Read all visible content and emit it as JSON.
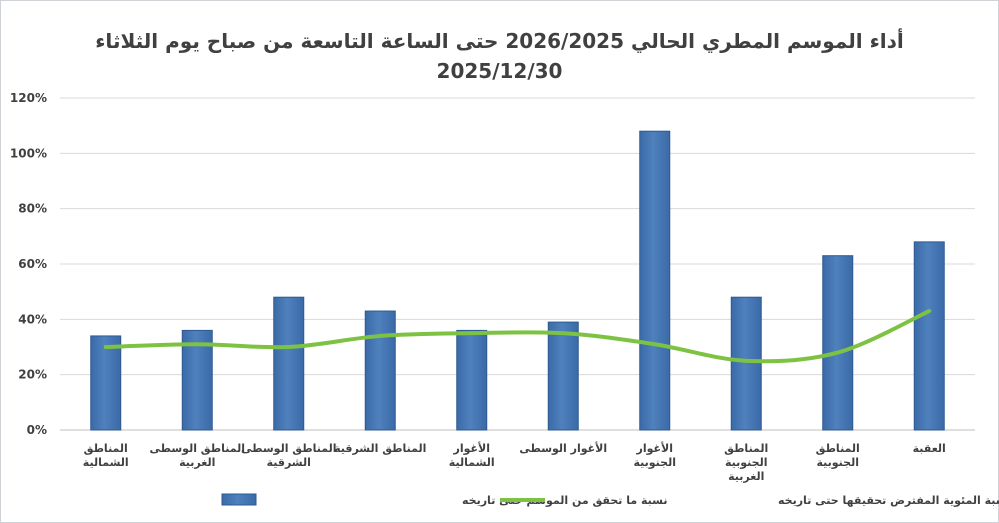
{
  "chart_data": {
    "type": "bar",
    "title_line1": "أداء الموسم المطري الحالي 2026/2025 حتى الساعة التاسعة من صباح يوم الثلاثاء",
    "title_line2": "2025/12/30",
    "categories": [
      "المناطق الشمالية",
      "المناطق الوسطى الغربية",
      "المناطق الوسطى الشرقية",
      "المناطق الشرقية",
      "الأغوار الشمالية",
      "الأغوار الوسطى",
      "الأغوار الجنوبية",
      "المناطق الجنوبية الغربية",
      "المناطق الجنوبية",
      "العقبة"
    ],
    "ylim": [
      0,
      120
    ],
    "yticks": [
      0,
      20,
      40,
      60,
      80,
      100,
      120
    ],
    "ytick_suffix": "%",
    "series": [
      {
        "name": "نسبة ما تحقق من الموسم حتى تاريخه",
        "type": "bar",
        "color": "#4F81BD",
        "values": [
          34,
          36,
          48,
          43,
          36,
          39,
          108,
          48,
          63,
          68
        ]
      },
      {
        "name": "النسبة المئوية المفترض تحقيقها حتى تاريخه",
        "type": "line",
        "color": "#7DC242",
        "values": [
          30,
          31,
          30,
          34,
          35,
          35,
          31,
          25,
          28,
          43
        ]
      }
    ],
    "grid": true,
    "legend_position": "bottom"
  }
}
